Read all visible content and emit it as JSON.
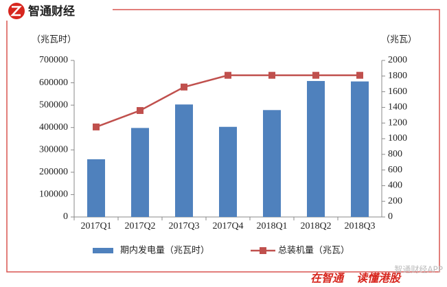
{
  "header": {
    "brand": "智通财经"
  },
  "chart_data": {
    "type": "bar",
    "ylabel": "（兆瓦时）",
    "y2label": "（兆瓦）",
    "categories": [
      "2017Q1",
      "2017Q2",
      "2017Q3",
      "2017Q4",
      "2018Q1",
      "2018Q2",
      "2018Q3"
    ],
    "series": [
      {
        "name": "期内发电量（兆瓦时）",
        "type": "bar",
        "color": "#4f81bd",
        "values": [
          258000,
          398000,
          503000,
          403000,
          478000,
          608000,
          606000
        ]
      },
      {
        "name": "总装机量（兆瓦）",
        "type": "line",
        "axis": "y2",
        "color": "#c0504d",
        "values": [
          1150,
          1360,
          1660,
          1810,
          1810,
          1810,
          1810
        ]
      }
    ],
    "ylim": [
      0,
      700000
    ],
    "yticks": [
      0,
      100000,
      200000,
      300000,
      400000,
      500000,
      600000,
      700000
    ],
    "y2lim": [
      0,
      2000
    ],
    "y2ticks": [
      0,
      200,
      400,
      600,
      800,
      1000,
      1200,
      1400,
      1600,
      1800,
      2000
    ],
    "legend": "bottom"
  },
  "footer": {
    "slogan_left": "在智通",
    "slogan_right": "读懂港股",
    "watermark": "智通财经APP"
  }
}
